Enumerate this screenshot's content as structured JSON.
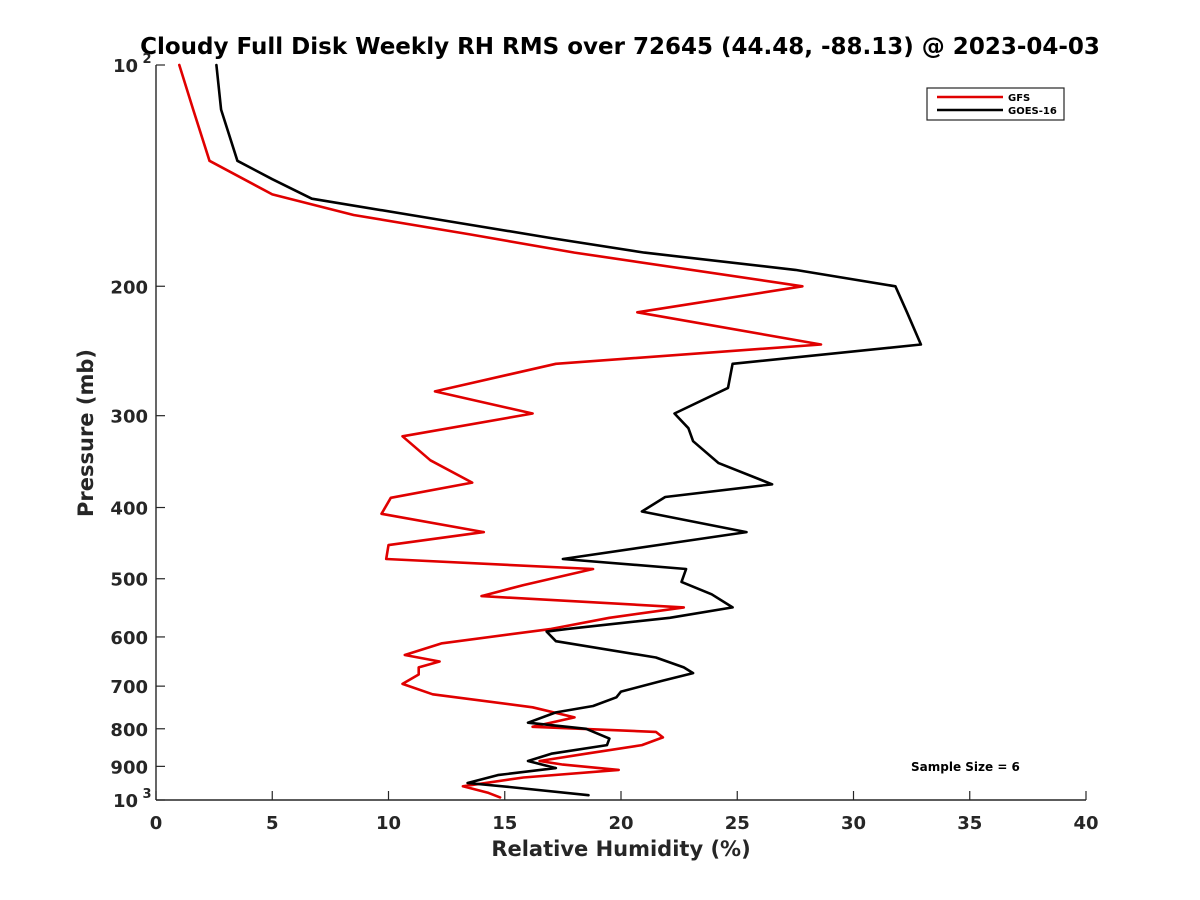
{
  "chart_data": {
    "type": "line",
    "title": "Cloudy Full Disk Weekly RH RMS over 72645 (44.48, -88.13) @ 2023-04-03",
    "xlabel": "Relative Humidity (%)",
    "ylabel": "Pressure (mb)",
    "xlim": [
      0,
      40
    ],
    "ylim": [
      100,
      1000
    ],
    "y_scale": "log",
    "y_reversed": true,
    "x_ticks": [
      0,
      5,
      10,
      15,
      20,
      25,
      30,
      35,
      40
    ],
    "x_tick_labels": [
      "0",
      "5",
      "10",
      "15",
      "20",
      "25",
      "30",
      "35",
      "40"
    ],
    "y_ticks": [
      100,
      200,
      300,
      400,
      500,
      600,
      700,
      800,
      900,
      1000
    ],
    "y_tick_labels": [
      {
        "base": "10",
        "exp": "2"
      },
      {
        "base": "200",
        "exp": ""
      },
      {
        "base": "300",
        "exp": ""
      },
      {
        "base": "400",
        "exp": ""
      },
      {
        "base": "500",
        "exp": ""
      },
      {
        "base": "600",
        "exp": ""
      },
      {
        "base": "700",
        "exp": ""
      },
      {
        "base": "800",
        "exp": ""
      },
      {
        "base": "900",
        "exp": ""
      },
      {
        "base": "10",
        "exp": "3"
      }
    ],
    "grid": false,
    "legend_position": "top-right",
    "annotation": "Sample Size = 6",
    "series": [
      {
        "name": "GFS",
        "color": "#e00000",
        "points": [
          [
            1.0,
            100
          ],
          [
            1.6,
            115
          ],
          [
            2.3,
            135
          ],
          [
            5.0,
            150
          ],
          [
            8.5,
            160
          ],
          [
            13.5,
            170
          ],
          [
            18.0,
            180
          ],
          [
            27.8,
            200
          ],
          [
            20.7,
            217
          ],
          [
            28.6,
            240
          ],
          [
            17.2,
            255
          ],
          [
            12.0,
            278
          ],
          [
            16.2,
            298
          ],
          [
            10.6,
            320
          ],
          [
            11.8,
            345
          ],
          [
            13.6,
            370
          ],
          [
            10.1,
            388
          ],
          [
            9.7,
            408
          ],
          [
            14.1,
            432
          ],
          [
            10.0,
            450
          ],
          [
            9.9,
            470
          ],
          [
            18.8,
            485
          ],
          [
            15.8,
            510
          ],
          [
            14.0,
            528
          ],
          [
            22.7,
            547
          ],
          [
            19.5,
            565
          ],
          [
            17.0,
            585
          ],
          [
            12.3,
            612
          ],
          [
            10.7,
            635
          ],
          [
            12.2,
            648
          ],
          [
            11.3,
            660
          ],
          [
            11.3,
            675
          ],
          [
            10.6,
            695
          ],
          [
            11.9,
            718
          ],
          [
            16.2,
            748
          ],
          [
            18.0,
            772
          ],
          [
            16.2,
            795
          ],
          [
            21.5,
            808
          ],
          [
            21.8,
            822
          ],
          [
            20.9,
            842
          ],
          [
            18.5,
            865
          ],
          [
            16.5,
            885
          ],
          [
            17.5,
            895
          ],
          [
            19.9,
            910
          ],
          [
            15.8,
            932
          ],
          [
            13.2,
            958
          ],
          [
            14.3,
            978
          ],
          [
            14.8,
            992
          ]
        ]
      },
      {
        "name": "GOES-16",
        "color": "#000000",
        "points": [
          [
            2.6,
            100
          ],
          [
            2.8,
            115
          ],
          [
            3.5,
            135
          ],
          [
            5.0,
            143
          ],
          [
            6.7,
            152
          ],
          [
            12.0,
            162
          ],
          [
            17.0,
            172
          ],
          [
            21.0,
            180
          ],
          [
            27.5,
            190
          ],
          [
            31.8,
            200
          ],
          [
            32.3,
            217
          ],
          [
            32.9,
            240
          ],
          [
            24.8,
            255
          ],
          [
            24.6,
            275
          ],
          [
            22.3,
            298
          ],
          [
            22.9,
            312
          ],
          [
            23.1,
            325
          ],
          [
            24.2,
            348
          ],
          [
            26.5,
            372
          ],
          [
            21.9,
            387
          ],
          [
            20.9,
            405
          ],
          [
            25.4,
            432
          ],
          [
            22.2,
            447
          ],
          [
            17.5,
            470
          ],
          [
            22.8,
            485
          ],
          [
            22.6,
            505
          ],
          [
            23.9,
            525
          ],
          [
            24.8,
            547
          ],
          [
            22.1,
            565
          ],
          [
            17.7,
            585
          ],
          [
            16.8,
            590
          ],
          [
            17.2,
            608
          ],
          [
            21.5,
            640
          ],
          [
            22.7,
            660
          ],
          [
            23.1,
            672
          ],
          [
            21.8,
            688
          ],
          [
            20.0,
            712
          ],
          [
            19.8,
            725
          ],
          [
            18.8,
            745
          ],
          [
            17.2,
            760
          ],
          [
            16.0,
            785
          ],
          [
            18.5,
            800
          ],
          [
            19.5,
            825
          ],
          [
            19.4,
            842
          ],
          [
            17.0,
            865
          ],
          [
            16.0,
            885
          ],
          [
            17.2,
            905
          ],
          [
            14.7,
            925
          ],
          [
            13.4,
            948
          ],
          [
            15.2,
            960
          ],
          [
            18.6,
            985
          ]
        ]
      }
    ]
  }
}
